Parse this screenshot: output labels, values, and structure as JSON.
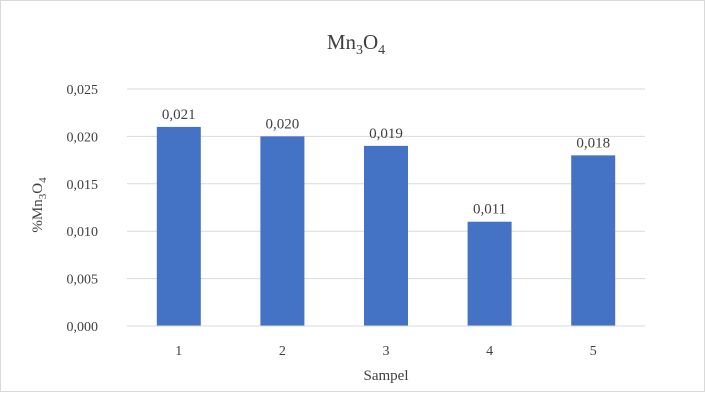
{
  "chart_data": {
    "type": "bar",
    "title": {
      "main": "Mn",
      "sub1": "3",
      "mid": "O",
      "sub2": "4"
    },
    "xlabel": "Sampel",
    "ylabel": {
      "pre": "%Mn",
      "sub1": "3",
      "mid": "O",
      "sub2": "4"
    },
    "categories": [
      "1",
      "2",
      "3",
      "4",
      "5"
    ],
    "values": [
      0.021,
      0.02,
      0.019,
      0.011,
      0.018
    ],
    "data_labels": [
      "0,021",
      "0,020",
      "0,019",
      "0,011",
      "0,018"
    ],
    "ylim": [
      0,
      0.025
    ],
    "yticks": [
      "0,000",
      "0,005",
      "0,010",
      "0,015",
      "0,020",
      "0,025"
    ],
    "grid": true,
    "bar_color": "#4472c4",
    "grid_color": "#d9d9d9"
  }
}
